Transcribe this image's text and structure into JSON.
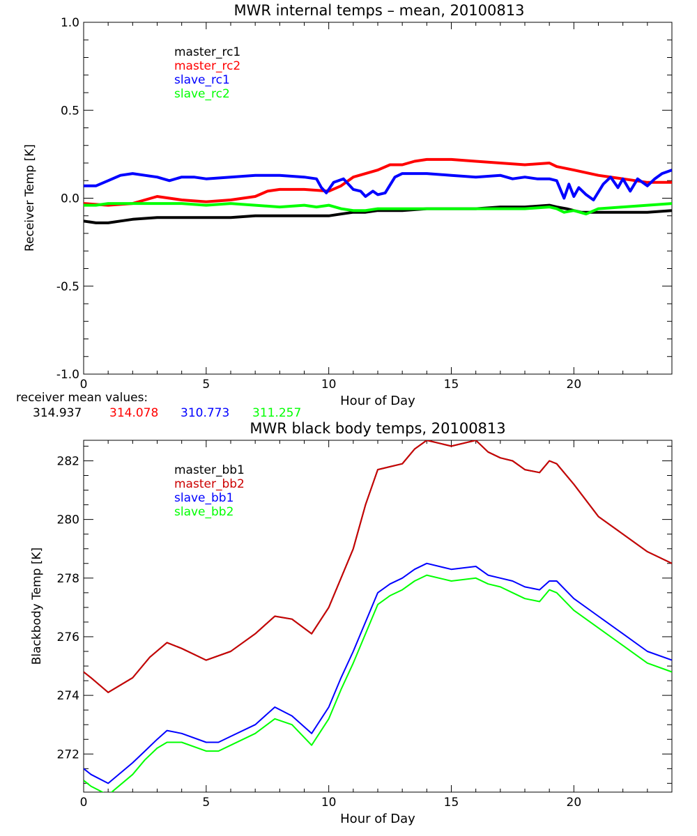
{
  "chart_data": [
    {
      "type": "line",
      "title": "MWR internal temps – mean, 20100813",
      "xlabel": "Hour of Day",
      "ylabel": "Receiver Temp [K]",
      "xlim": [
        0,
        24
      ],
      "ylim": [
        -1.0,
        1.0
      ],
      "xticks": [
        0,
        5,
        10,
        15,
        20
      ],
      "yticks": [
        -1.0,
        -0.5,
        0.0,
        0.5,
        1.0
      ],
      "ytick_labels": [
        "-1.0",
        "-0.5",
        "0.0",
        "0.5",
        "1.0"
      ],
      "grid": false,
      "legend_position": "top-left",
      "mean_values_label": "receiver mean values:",
      "series": [
        {
          "name": "master_rc1",
          "color": "#000000",
          "mean_value": "314.937",
          "x": [
            0,
            0.5,
            1,
            1.5,
            2,
            3,
            4,
            5,
            6,
            7,
            8,
            9,
            9.5,
            10,
            10.5,
            11,
            11.5,
            12,
            13,
            14,
            15,
            16,
            17,
            18,
            19,
            19.3,
            19.7,
            20,
            20.3,
            20.6,
            21,
            22,
            23,
            24
          ],
          "y": [
            -0.13,
            -0.14,
            -0.14,
            -0.13,
            -0.12,
            -0.11,
            -0.11,
            -0.11,
            -0.11,
            -0.1,
            -0.1,
            -0.1,
            -0.1,
            -0.1,
            -0.09,
            -0.08,
            -0.08,
            -0.07,
            -0.07,
            -0.06,
            -0.06,
            -0.06,
            -0.05,
            -0.05,
            -0.04,
            -0.05,
            -0.06,
            -0.07,
            -0.08,
            -0.08,
            -0.08,
            -0.08,
            -0.08,
            -0.07
          ]
        },
        {
          "name": "master_rc2",
          "color": "#ff0000",
          "mean_value": "314.078",
          "x": [
            0,
            1,
            2,
            2.5,
            3,
            3.5,
            4,
            5,
            6,
            7,
            7.5,
            8,
            9,
            10,
            10.5,
            11,
            12,
            12.5,
            13,
            13.5,
            14,
            15,
            16,
            17,
            18,
            19,
            19.3,
            20,
            21,
            22,
            23,
            24
          ],
          "y": [
            -0.03,
            -0.04,
            -0.03,
            -0.01,
            0.01,
            0.0,
            -0.01,
            -0.02,
            -0.01,
            0.01,
            0.04,
            0.05,
            0.05,
            0.04,
            0.07,
            0.12,
            0.16,
            0.19,
            0.19,
            0.21,
            0.22,
            0.22,
            0.21,
            0.2,
            0.19,
            0.2,
            0.18,
            0.16,
            0.13,
            0.11,
            0.09,
            0.09
          ]
        },
        {
          "name": "slave_rc1",
          "color": "#0000ff",
          "mean_value": "310.773",
          "x": [
            0,
            0.5,
            1,
            1.5,
            2,
            2.5,
            3,
            3.5,
            4,
            4.5,
            5,
            6,
            7,
            8,
            9,
            9.5,
            9.7,
            9.9,
            10.2,
            10.6,
            11,
            11.3,
            11.5,
            11.8,
            12,
            12.3,
            12.7,
            13,
            14,
            15,
            16,
            17,
            17.5,
            18,
            18.5,
            19,
            19.3,
            19.6,
            19.8,
            20.0,
            20.2,
            20.5,
            20.8,
            21.2,
            21.5,
            21.8,
            22.0,
            22.3,
            22.6,
            23.0,
            23.3,
            23.6,
            24
          ],
          "y": [
            0.07,
            0.07,
            0.1,
            0.13,
            0.14,
            0.13,
            0.12,
            0.1,
            0.12,
            0.12,
            0.11,
            0.12,
            0.13,
            0.13,
            0.12,
            0.11,
            0.06,
            0.03,
            0.09,
            0.11,
            0.05,
            0.04,
            0.01,
            0.04,
            0.02,
            0.03,
            0.12,
            0.14,
            0.14,
            0.13,
            0.12,
            0.13,
            0.11,
            0.12,
            0.11,
            0.11,
            0.1,
            0.0,
            0.08,
            0.01,
            0.06,
            0.02,
            -0.01,
            0.08,
            0.12,
            0.06,
            0.11,
            0.04,
            0.11,
            0.07,
            0.11,
            0.14,
            0.16
          ]
        },
        {
          "name": "slave_rc2",
          "color": "#00ff00",
          "mean_value": "311.257",
          "x": [
            0,
            0.5,
            1,
            2,
            3,
            4,
            5,
            6,
            7,
            8,
            9,
            9.5,
            10,
            10.5,
            11,
            11.5,
            12,
            13,
            14,
            15,
            16,
            17,
            18,
            19,
            19.3,
            19.6,
            20,
            20.5,
            21,
            22,
            23,
            24
          ],
          "y": [
            -0.04,
            -0.04,
            -0.03,
            -0.03,
            -0.03,
            -0.03,
            -0.04,
            -0.03,
            -0.04,
            -0.05,
            -0.04,
            -0.05,
            -0.04,
            -0.06,
            -0.07,
            -0.07,
            -0.06,
            -0.06,
            -0.06,
            -0.06,
            -0.06,
            -0.06,
            -0.06,
            -0.05,
            -0.06,
            -0.08,
            -0.07,
            -0.09,
            -0.06,
            -0.05,
            -0.04,
            -0.03
          ]
        }
      ]
    },
    {
      "type": "line",
      "title": "MWR black body temps, 20100813",
      "xlabel": "Hour of Day",
      "ylabel": "Blackbody Temp [K]",
      "xlim": [
        0,
        24
      ],
      "ylim": [
        270.7,
        282.7
      ],
      "xticks": [
        0,
        5,
        10,
        15,
        20
      ],
      "yticks": [
        272,
        274,
        276,
        278,
        280,
        282
      ],
      "ytick_labels": [
        "272",
        "274",
        "276",
        "278",
        "280",
        "282"
      ],
      "grid": false,
      "legend_position": "top-left",
      "series": [
        {
          "name": "master_bb1",
          "color": "#000000",
          "x": [
            0,
            0.3,
            1,
            2,
            2.7,
            3.4,
            4,
            5,
            6,
            7,
            7.8,
            8.5,
            9.3,
            10,
            10.5,
            11,
            11.5,
            12,
            12.5,
            13,
            13.5,
            14,
            15,
            16,
            16.5,
            17,
            17.5,
            18,
            18.6,
            19,
            19.3,
            20,
            21,
            22,
            23,
            24
          ],
          "y": [
            274.8,
            274.6,
            274.1,
            274.6,
            275.3,
            275.8,
            275.6,
            275.2,
            275.5,
            276.1,
            276.7,
            276.6,
            276.1,
            277.0,
            278.0,
            279.0,
            280.5,
            281.7,
            281.8,
            281.9,
            282.4,
            282.7,
            282.5,
            282.7,
            282.3,
            282.1,
            282.0,
            281.7,
            281.6,
            282.0,
            281.9,
            281.2,
            280.1,
            279.5,
            278.9,
            278.5
          ]
        },
        {
          "name": "master_bb2",
          "color": "#cc0000",
          "x": [
            0,
            0.3,
            1,
            2,
            2.7,
            3.4,
            4,
            5,
            6,
            7,
            7.8,
            8.5,
            9.3,
            10,
            10.5,
            11,
            11.5,
            12,
            12.5,
            13,
            13.5,
            14,
            15,
            16,
            16.5,
            17,
            17.5,
            18,
            18.6,
            19,
            19.3,
            20,
            21,
            22,
            23,
            24
          ],
          "y": [
            274.8,
            274.6,
            274.1,
            274.6,
            275.3,
            275.8,
            275.6,
            275.2,
            275.5,
            276.1,
            276.7,
            276.6,
            276.1,
            277.0,
            278.0,
            279.0,
            280.5,
            281.7,
            281.8,
            281.9,
            282.4,
            282.7,
            282.5,
            282.7,
            282.3,
            282.1,
            282.0,
            281.7,
            281.6,
            282.0,
            281.9,
            281.2,
            280.1,
            279.5,
            278.9,
            278.5
          ]
        },
        {
          "name": "slave_bb1",
          "color": "#0000ff",
          "x": [
            0,
            0.3,
            1,
            2,
            2.5,
            3,
            3.4,
            4,
            5,
            5.5,
            6,
            7,
            7.8,
            8.5,
            9.3,
            10,
            10.5,
            11,
            11.5,
            12,
            12.5,
            13,
            13.5,
            14,
            15,
            16,
            16.5,
            17,
            17.5,
            18,
            18.6,
            19,
            19.3,
            20,
            21,
            22,
            23,
            24
          ],
          "y": [
            271.5,
            271.3,
            271.0,
            271.7,
            272.1,
            272.5,
            272.8,
            272.7,
            272.4,
            272.4,
            272.6,
            273.0,
            273.6,
            273.3,
            272.7,
            273.6,
            274.6,
            275.5,
            276.5,
            277.5,
            277.8,
            278.0,
            278.3,
            278.5,
            278.3,
            278.4,
            278.1,
            278.0,
            277.9,
            277.7,
            277.6,
            277.9,
            277.9,
            277.3,
            276.7,
            276.1,
            275.5,
            275.2
          ]
        },
        {
          "name": "slave_bb2",
          "color": "#00ff00",
          "x": [
            0,
            0.3,
            1,
            2,
            2.5,
            3,
            3.4,
            4,
            5,
            5.5,
            6,
            7,
            7.8,
            8.5,
            9.3,
            10,
            10.5,
            11,
            11.5,
            12,
            12.5,
            13,
            13.5,
            14,
            15,
            16,
            16.5,
            17,
            17.5,
            18,
            18.6,
            19,
            19.3,
            20,
            21,
            22,
            23,
            24
          ],
          "y": [
            271.1,
            270.9,
            270.6,
            271.3,
            271.8,
            272.2,
            272.4,
            272.4,
            272.1,
            272.1,
            272.3,
            272.7,
            273.2,
            273.0,
            272.3,
            273.2,
            274.2,
            275.1,
            276.1,
            277.1,
            277.4,
            277.6,
            277.9,
            278.1,
            277.9,
            278.0,
            277.8,
            277.7,
            277.5,
            277.3,
            277.2,
            277.6,
            277.5,
            276.9,
            276.3,
            275.7,
            275.1,
            274.8
          ]
        }
      ]
    }
  ]
}
